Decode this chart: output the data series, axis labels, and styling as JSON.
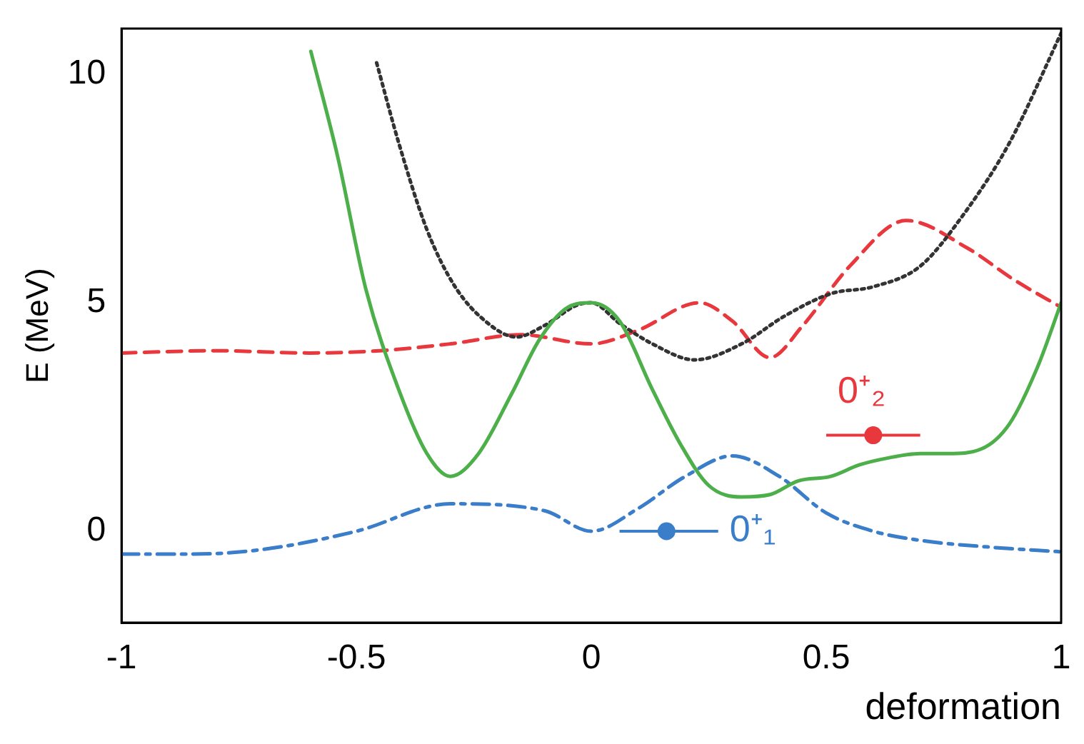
{
  "chart_data": {
    "type": "line",
    "xlabel": "deformation",
    "ylabel": "E (MeV)",
    "xlim": [
      -1,
      1
    ],
    "ylim": [
      -2,
      11
    ],
    "xticks": [
      -1,
      -0.5,
      0,
      0.5,
      1
    ],
    "yticks": [
      0,
      5,
      10
    ],
    "grid": false,
    "legend": false,
    "marker": "none",
    "series": [
      {
        "color": "#4daf4a",
        "line_style": "solid",
        "x": [
          -0.597,
          -0.54,
          -0.48,
          -0.41,
          -0.35,
          -0.3,
          -0.24,
          -0.17,
          -0.11,
          -0.05,
          0,
          0.06,
          0.13,
          0.19,
          0.25,
          0.32,
          0.38,
          0.44,
          0.51,
          0.57,
          0.63,
          0.7,
          0.76,
          0.83,
          0.89,
          0.95,
          1
        ],
        "values": [
          10.5,
          8.2,
          5.3,
          3.1,
          1.7,
          1.2,
          1.7,
          3.0,
          4.2,
          4.9,
          5.0,
          4.6,
          3.1,
          1.9,
          1.0,
          0.75,
          0.8,
          1.1,
          1.2,
          1.45,
          1.6,
          1.7,
          1.7,
          1.8,
          2.35,
          3.6,
          5.0
        ]
      },
      {
        "color": "#333333",
        "line_style": "dotted",
        "x": [
          -0.457,
          -0.41,
          -0.35,
          -0.29,
          -0.22,
          -0.16,
          -0.1,
          -0.03,
          0,
          0.06,
          0.13,
          0.22,
          0.32,
          0.41,
          0.51,
          0.6,
          0.7,
          0.79,
          0.89,
          1
        ],
        "values": [
          10.25,
          8.5,
          6.6,
          5.35,
          4.55,
          4.25,
          4.5,
          4.95,
          5.0,
          4.55,
          4.1,
          3.75,
          4.1,
          4.7,
          5.2,
          5.35,
          5.8,
          6.9,
          8.5,
          10.9
        ]
      },
      {
        "color": "#e8383d",
        "line_style": "dashed",
        "x": [
          -1,
          -0.8,
          -0.6,
          -0.45,
          -0.3,
          -0.15,
          0,
          0.1,
          0.23,
          0.3,
          0.38,
          0.45,
          0.55,
          0.67,
          0.8,
          0.9,
          1
        ],
        "values": [
          3.9,
          3.95,
          3.9,
          3.95,
          4.1,
          4.3,
          4.1,
          4.4,
          5.0,
          4.6,
          3.8,
          4.5,
          5.8,
          6.8,
          6.2,
          5.5,
          4.9
        ]
      },
      {
        "color": "#3a7dc9",
        "line_style": "dashdot",
        "x": [
          -1,
          -0.85,
          -0.7,
          -0.5,
          -0.3,
          -0.1,
          0,
          0.1,
          0.2,
          0.3,
          0.4,
          0.5,
          0.6,
          0.7,
          0.85,
          1
        ],
        "values": [
          -0.5,
          -0.5,
          -0.4,
          0,
          0.6,
          0.45,
          0,
          0.5,
          1.2,
          1.65,
          1.2,
          0.4,
          0,
          -0.2,
          -0.35,
          -0.45
        ]
      },
      {
        "type": "scatter",
        "color": "#3a7dc9",
        "marker": "circle",
        "x": [
          0.16
        ],
        "values": [
          0
        ],
        "xerrors": [
          [
            0.06,
            0.27
          ]
        ]
      },
      {
        "type": "scatter",
        "color": "#e8383d",
        "marker": "circle",
        "x": [
          0.6
        ],
        "values": [
          2.1
        ],
        "xerrors": [
          [
            0.5,
            0.7
          ]
        ]
      }
    ],
    "annotations": [
      {
        "text": "0⁺₁",
        "x": 0.27,
        "y": 0
      },
      {
        "text": "0⁺₂",
        "x": 0.5,
        "y": 2.1
      }
    ]
  }
}
